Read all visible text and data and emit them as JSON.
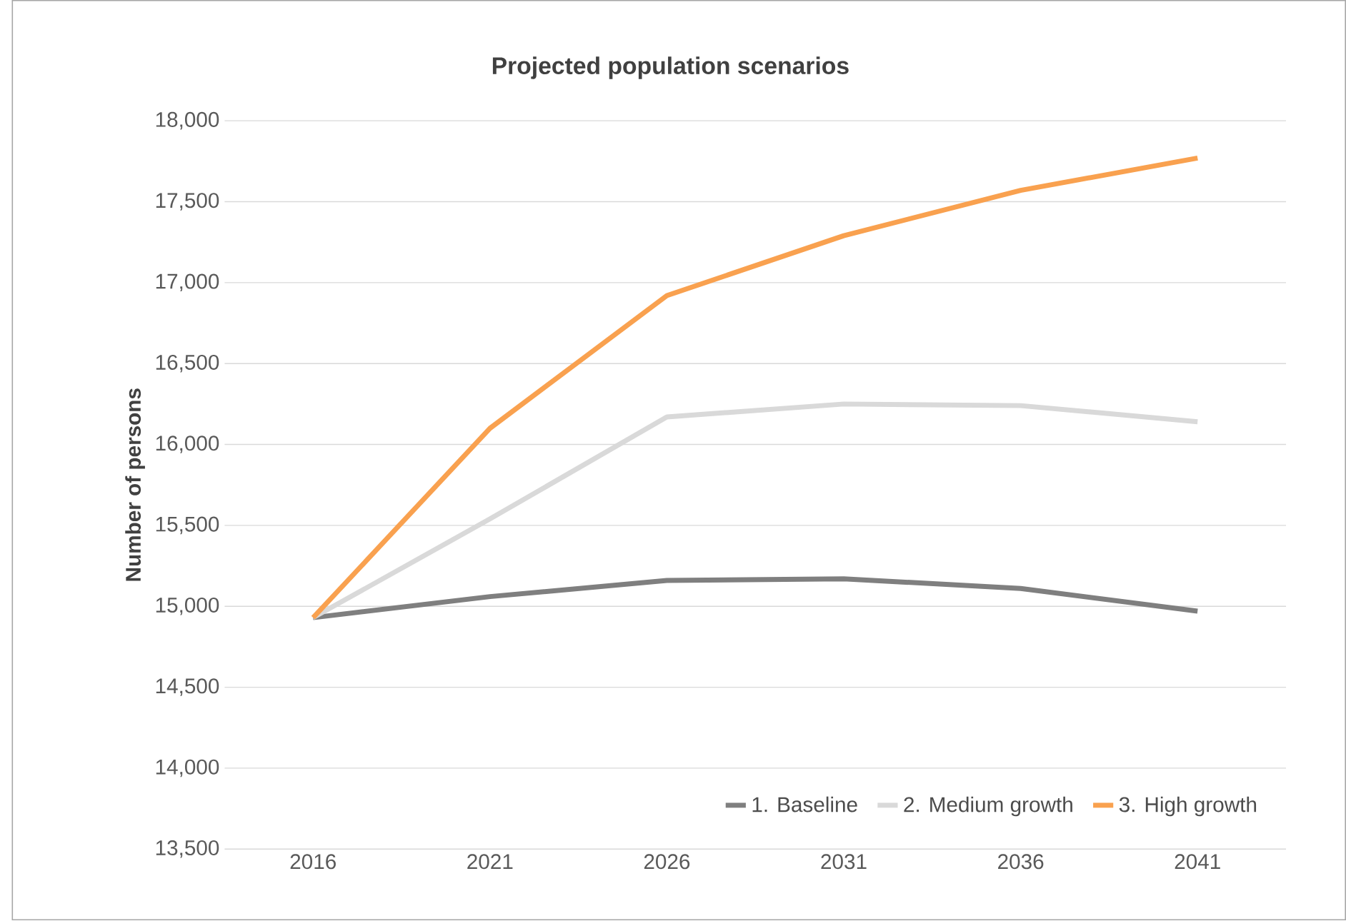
{
  "chart_data": {
    "type": "line",
    "title": "Projected population scenarios",
    "ylabel": "Number of persons",
    "categories": [
      "2016",
      "2021",
      "2026",
      "2031",
      "2036",
      "2041"
    ],
    "series": [
      {
        "name": "1. Baseline",
        "color": "#7f7f7f",
        "values": [
          14930,
          15060,
          15160,
          15170,
          15110,
          14970
        ]
      },
      {
        "name": "2. Medium growth",
        "color": "#d9d9d9",
        "values": [
          14930,
          15540,
          16170,
          16250,
          16240,
          16140
        ]
      },
      {
        "name": "3. High growth",
        "color": "#f9a14f",
        "values": [
          14930,
          16100,
          16920,
          17290,
          17570,
          17770
        ]
      }
    ],
    "ylim": [
      13500,
      18000
    ],
    "yticks": [
      {
        "value": 13500,
        "label": "13,500"
      },
      {
        "value": 14000,
        "label": "14,000"
      },
      {
        "value": 14500,
        "label": "14,500"
      },
      {
        "value": 15000,
        "label": "15,000"
      },
      {
        "value": 15500,
        "label": "15,500"
      },
      {
        "value": 16000,
        "label": "16,000"
      },
      {
        "value": 16500,
        "label": "16,500"
      },
      {
        "value": 17000,
        "label": "17,000"
      },
      {
        "value": 17500,
        "label": "17,500"
      },
      {
        "value": 18000,
        "label": "18,000"
      }
    ],
    "grid": "y",
    "legend": "bottom right",
    "marker": "none",
    "line_style": "solid"
  }
}
